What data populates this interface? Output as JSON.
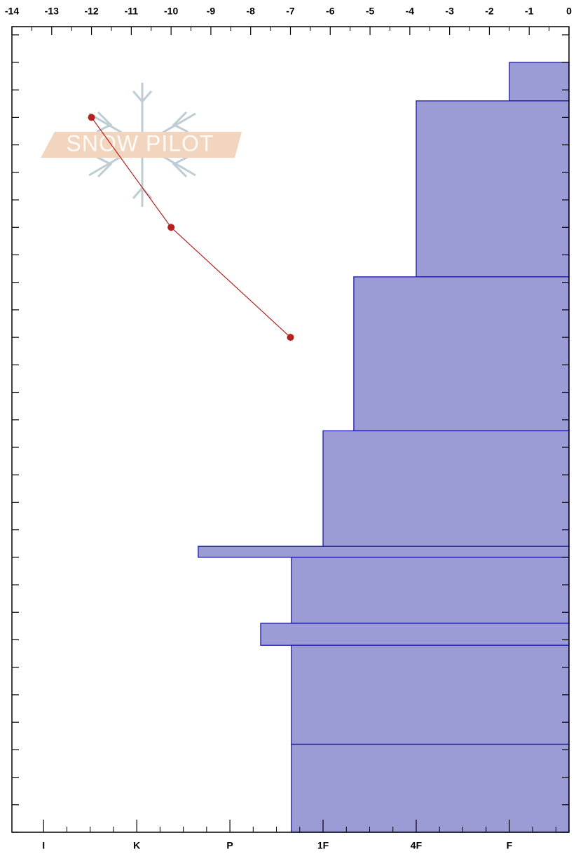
{
  "chart_data": {
    "type": "snow_profile",
    "watermark": "SNOW PILOT",
    "ylim": [
      0,
      146.5
    ],
    "yticks": [
      0,
      5,
      10,
      15,
      20,
      25,
      30,
      35,
      40,
      45,
      50,
      55,
      60,
      65,
      70,
      75,
      80,
      85,
      90,
      95,
      100,
      105,
      110,
      115,
      120,
      125,
      130,
      135,
      140,
      145
    ],
    "temperature": {
      "xlim": [
        -14,
        0
      ],
      "xticks": [
        -14,
        -13,
        -12,
        -11,
        -10,
        -9,
        -8,
        -7,
        -6,
        -5,
        -4,
        -3,
        -2,
        -1,
        0
      ],
      "x": [
        -12,
        -10,
        -7
      ],
      "y": [
        130,
        110,
        90
      ],
      "color": "#b22222"
    },
    "hardness": {
      "xlim": [
        6.34,
        0.36
      ],
      "xticks": [
        {
          "value": 6,
          "label": "I"
        },
        {
          "value": 5,
          "label": "K"
        },
        {
          "value": 4,
          "label": "P"
        },
        {
          "value": 3,
          "label": "1F"
        },
        {
          "value": 2,
          "label": "4F"
        },
        {
          "value": 1,
          "label": "F"
        }
      ],
      "color": "#9b9bd6",
      "edge_color": "#1c1ca8",
      "tops": [
        140,
        133,
        101,
        73,
        52,
        50,
        38,
        34,
        16
      ],
      "bottoms": [
        133,
        101,
        73,
        52,
        50,
        38,
        34,
        16,
        0
      ],
      "values": [
        1,
        2,
        2.67,
        3,
        4.34,
        3.34,
        3.67,
        3.34,
        3.34
      ]
    }
  }
}
